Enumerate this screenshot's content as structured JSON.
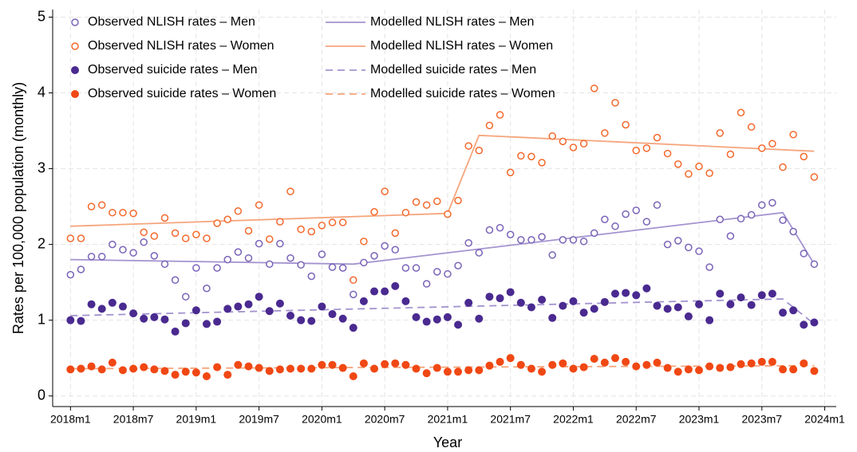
{
  "chart_data": {
    "type": "scatter",
    "xlabel": "Year",
    "ylabel": "Rates per 100,000 population (monthly)",
    "xlim": [
      -1.7,
      73.1
    ],
    "ylim": [
      -0.14,
      5.1
    ],
    "xticks": [
      {
        "value": 0,
        "label": "2018m1"
      },
      {
        "value": 6,
        "label": "2018m7"
      },
      {
        "value": 12,
        "label": "2019m1"
      },
      {
        "value": 18,
        "label": "2019m7"
      },
      {
        "value": 24,
        "label": "2020m1"
      },
      {
        "value": 30,
        "label": "2020m7"
      },
      {
        "value": 36,
        "label": "2021m1"
      },
      {
        "value": 42,
        "label": "2021m7"
      },
      {
        "value": 48,
        "label": "2022m1"
      },
      {
        "value": 54,
        "label": "2022m7"
      },
      {
        "value": 60,
        "label": "2023m1"
      },
      {
        "value": 66,
        "label": "2023m7"
      },
      {
        "value": 72,
        "label": "2024m1"
      }
    ],
    "yticks": [
      0,
      1,
      2,
      3,
      4,
      5
    ],
    "grid": true,
    "x": [
      0,
      1,
      2,
      3,
      4,
      5,
      6,
      7,
      8,
      9,
      10,
      11,
      12,
      13,
      14,
      15,
      16,
      17,
      18,
      19,
      20,
      21,
      22,
      23,
      24,
      25,
      26,
      27,
      28,
      29,
      30,
      31,
      32,
      33,
      34,
      35,
      36,
      37,
      38,
      39,
      40,
      41,
      42,
      43,
      44,
      45,
      46,
      47,
      48,
      49,
      50,
      51,
      52,
      53,
      54,
      55,
      56,
      57,
      58,
      59,
      60,
      61,
      62,
      63,
      64,
      65,
      66,
      67,
      68,
      69,
      70,
      71
    ],
    "series": [
      {
        "name": "Observed NLISH rates – Men",
        "color": "#7a63b8",
        "marker": "hollow",
        "values": [
          1.6,
          1.67,
          1.84,
          1.84,
          2.0,
          1.93,
          1.89,
          2.03,
          1.85,
          1.74,
          1.53,
          1.31,
          1.69,
          1.42,
          1.69,
          1.8,
          1.9,
          1.82,
          2.01,
          1.74,
          2.01,
          1.82,
          1.73,
          1.58,
          1.87,
          1.7,
          1.69,
          1.34,
          1.76,
          1.85,
          1.98,
          1.93,
          1.69,
          1.69,
          1.48,
          1.64,
          1.61,
          1.72,
          2.02,
          1.89,
          2.19,
          2.22,
          2.13,
          2.06,
          2.06,
          2.1,
          1.86,
          2.06,
          2.06,
          2.04,
          2.15,
          2.33,
          2.24,
          2.4,
          2.45,
          2.3,
          2.52,
          2.0,
          2.05,
          1.96,
          1.91,
          1.7,
          2.33,
          2.11,
          2.34,
          2.39,
          2.52,
          2.55,
          2.32,
          2.17,
          1.88,
          1.74
        ]
      },
      {
        "name": "Observed NLISH rates – Women",
        "color": "#f2692c",
        "marker": "hollow",
        "values": [
          2.08,
          2.08,
          2.5,
          2.52,
          2.42,
          2.42,
          2.41,
          2.16,
          2.11,
          2.35,
          2.15,
          2.08,
          2.13,
          2.08,
          2.28,
          2.33,
          2.44,
          2.18,
          2.52,
          2.07,
          2.3,
          2.7,
          2.2,
          2.17,
          2.25,
          2.29,
          2.29,
          1.53,
          2.04,
          2.43,
          2.7,
          2.15,
          2.42,
          2.56,
          2.52,
          2.57,
          2.4,
          2.58,
          3.3,
          3.24,
          3.57,
          3.71,
          2.95,
          3.17,
          3.16,
          3.08,
          3.43,
          3.36,
          3.28,
          3.33,
          4.06,
          3.47,
          3.87,
          3.58,
          3.24,
          3.27,
          3.41,
          3.2,
          3.06,
          2.93,
          3.03,
          2.94,
          3.47,
          3.19,
          3.74,
          3.55,
          3.27,
          3.33,
          3.02,
          3.45,
          3.16,
          2.89
        ]
      },
      {
        "name": "Observed suicide rates – Men",
        "color": "#4a2a90",
        "marker": "filled",
        "values": [
          1.0,
          0.99,
          1.21,
          1.15,
          1.23,
          1.18,
          1.09,
          1.02,
          1.04,
          1.01,
          0.85,
          0.96,
          1.13,
          0.95,
          0.98,
          1.15,
          1.18,
          1.21,
          1.31,
          1.12,
          1.22,
          1.06,
          1.0,
          0.99,
          1.18,
          1.08,
          1.02,
          0.9,
          1.25,
          1.38,
          1.38,
          1.45,
          1.25,
          1.04,
          0.98,
          1.01,
          1.04,
          0.94,
          1.23,
          1.02,
          1.31,
          1.29,
          1.37,
          1.23,
          1.17,
          1.27,
          1.03,
          1.19,
          1.25,
          1.1,
          1.15,
          1.24,
          1.35,
          1.36,
          1.33,
          1.42,
          1.19,
          1.15,
          1.17,
          1.05,
          1.21,
          1.0,
          1.35,
          1.21,
          1.3,
          1.2,
          1.33,
          1.35,
          1.1,
          1.13,
          0.94,
          0.97
        ]
      },
      {
        "name": "Observed suicide rates – Women",
        "color": "#f04814",
        "marker": "filled",
        "values": [
          0.35,
          0.36,
          0.39,
          0.35,
          0.44,
          0.34,
          0.36,
          0.38,
          0.35,
          0.33,
          0.28,
          0.32,
          0.31,
          0.26,
          0.38,
          0.28,
          0.41,
          0.39,
          0.37,
          0.33,
          0.35,
          0.36,
          0.36,
          0.36,
          0.41,
          0.41,
          0.37,
          0.26,
          0.43,
          0.36,
          0.42,
          0.43,
          0.41,
          0.36,
          0.3,
          0.37,
          0.32,
          0.32,
          0.34,
          0.34,
          0.4,
          0.45,
          0.5,
          0.41,
          0.36,
          0.32,
          0.41,
          0.43,
          0.36,
          0.38,
          0.49,
          0.44,
          0.5,
          0.45,
          0.39,
          0.41,
          0.44,
          0.37,
          0.32,
          0.35,
          0.34,
          0.39,
          0.37,
          0.38,
          0.42,
          0.43,
          0.45,
          0.45,
          0.35,
          0.35,
          0.43,
          0.33
        ]
      },
      {
        "name": "Modelled NLISH rates – Men",
        "color": "#a393cf",
        "marker": "line",
        "x": [
          0,
          27,
          68,
          71
        ],
        "values": [
          1.8,
          1.74,
          2.42,
          1.74
        ]
      },
      {
        "name": "Modelled NLISH rates – Women",
        "color": "#f5a57c",
        "marker": "line",
        "x": [
          0,
          36,
          39,
          71
        ],
        "values": [
          2.24,
          2.41,
          3.44,
          3.23
        ]
      },
      {
        "name": "Modelled suicide rates – Men",
        "color": "#a393cf",
        "marker": "dashed",
        "x": [
          0,
          68,
          71
        ],
        "values": [
          1.06,
          1.28,
          0.95
        ]
      },
      {
        "name": "Modelled suicide rates – Women",
        "color": "#f5a57c",
        "marker": "dashed",
        "x": [
          0,
          71
        ],
        "values": [
          0.36,
          0.4
        ]
      }
    ]
  }
}
